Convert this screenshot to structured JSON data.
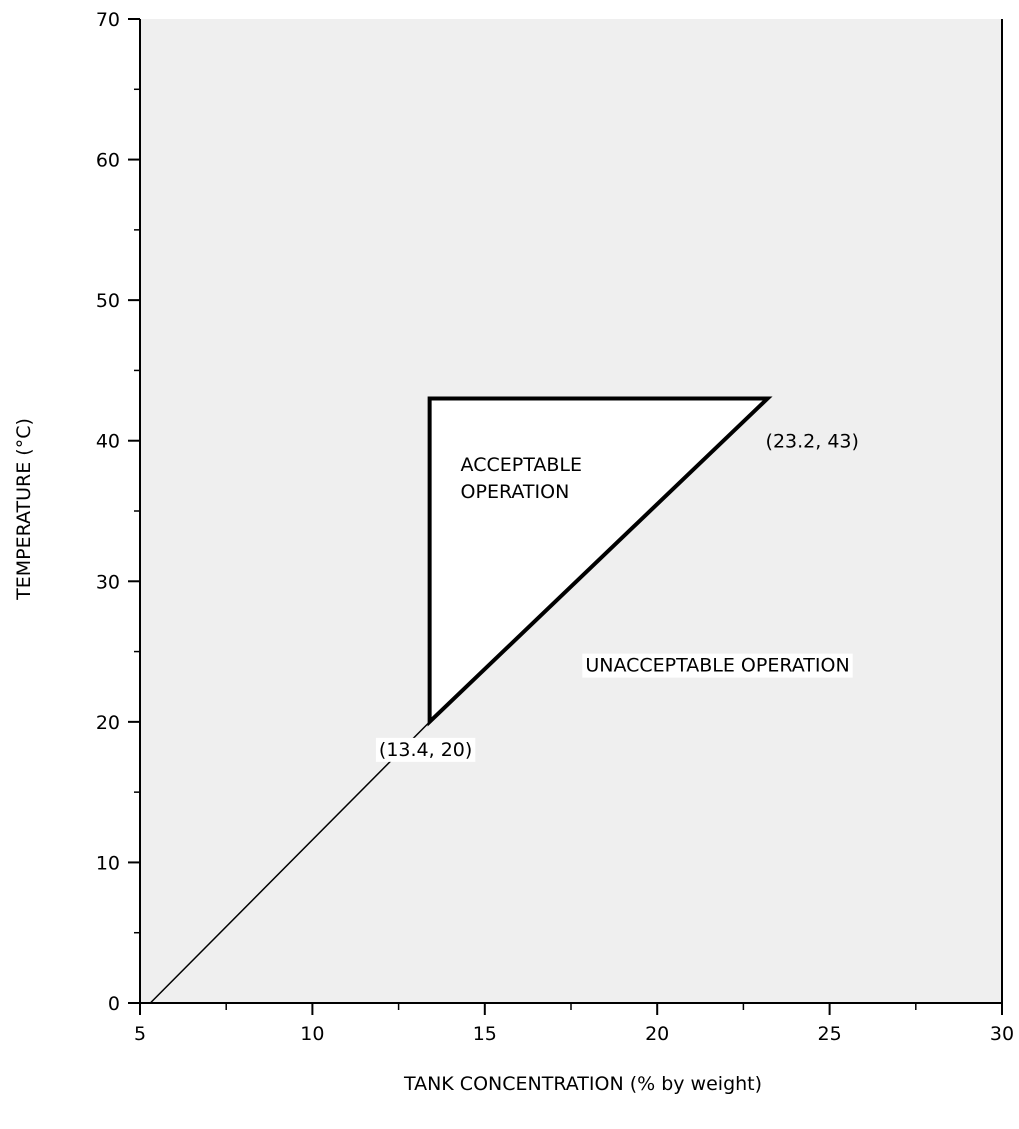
{
  "chart_data": {
    "type": "line",
    "xlabel": "TANK CONCENTRATION (% by weight)",
    "ylabel": "TEMPERATURE (°C)",
    "xlim": [
      5,
      30
    ],
    "ylim": [
      0,
      70
    ],
    "x_ticks_major": [
      5,
      10,
      15,
      20,
      25,
      30
    ],
    "x_ticks_minor": [
      7.5,
      12.5,
      17.5,
      22.5,
      27.5
    ],
    "y_ticks_major": [
      0,
      10,
      20,
      30,
      40,
      50,
      60,
      70
    ],
    "y_ticks_minor": [
      5,
      15,
      25,
      35,
      45,
      55,
      65
    ],
    "x_tick_labels": [
      "5",
      "10",
      "15",
      "20",
      "25",
      "30"
    ],
    "y_tick_labels": [
      "0",
      "10",
      "20",
      "30",
      "40",
      "50",
      "60",
      "70"
    ],
    "grid": false,
    "plot_background": "#efefef",
    "series": [
      {
        "x": [
          5.3,
          13.4,
          23.2
        ],
        "y": [
          0,
          20,
          43
        ],
        "color": "#000000"
      }
    ],
    "regions": [
      {
        "label_lines": [
          "ACCEPTABLE",
          "OPERATION"
        ],
        "polygon": [
          [
            13.4,
            20
          ],
          [
            13.4,
            43
          ],
          [
            23.2,
            43
          ]
        ],
        "fill": "#ffffff",
        "label_at": [
          14.5,
          38
        ]
      }
    ],
    "annotations": [
      {
        "text": "(13.4, 20)",
        "at": [
          13.4,
          20
        ],
        "anchor": "below"
      },
      {
        "text": "(23.2, 43)",
        "at": [
          23.2,
          43
        ],
        "anchor": "below-right"
      },
      {
        "text": "UNACCEPTABLE OPERATION",
        "at": [
          17.8,
          24
        ]
      }
    ]
  }
}
